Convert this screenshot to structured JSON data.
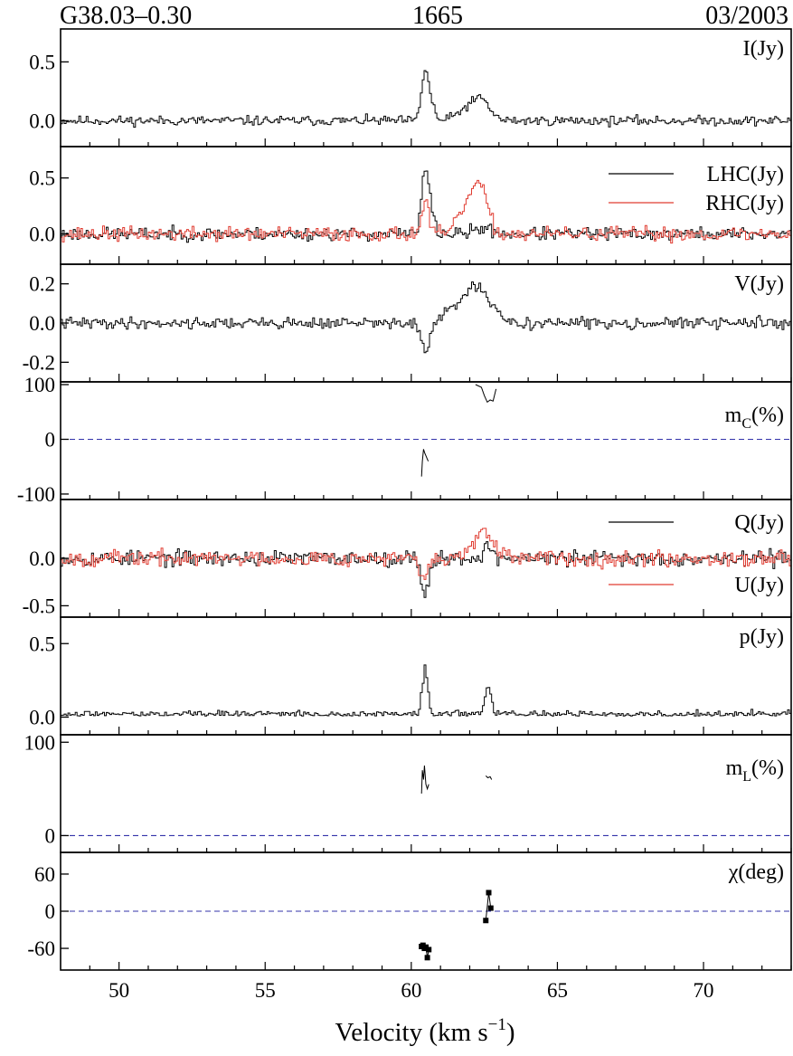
{
  "header": {
    "source": "G38.03–0.30",
    "line": "1665",
    "epoch": "03/2003"
  },
  "chart_data": {
    "type": "line",
    "style": "step",
    "stacked_panels": 8,
    "shared_x": {
      "label_main": "Velocity (km s",
      "label_sup": "−1",
      "label_close": ")",
      "range": [
        48.0,
        73.0
      ],
      "ticks": [
        50,
        55,
        60,
        65,
        70
      ],
      "tick_labels": [
        "50",
        "55",
        "60",
        "65",
        "70"
      ]
    },
    "colors": {
      "black": "#000000",
      "red": "#e03c31",
      "zero_line": "#3333aa"
    },
    "panels": [
      {
        "id": "I",
        "label": "I(Jy)",
        "ylim": [
          -0.22,
          0.78
        ],
        "ticks": [
          0.0,
          0.5
        ],
        "tick_labels": [
          "0.0",
          "0.5"
        ],
        "series": [
          {
            "name": "I(Jy)",
            "color": "#000000",
            "noise": 0.035,
            "seed": 11,
            "features": [
              [
                60.45,
                0.12,
                0.44
              ],
              [
                60.7,
                0.1,
                0.1
              ],
              [
                61.9,
                0.35,
                0.1
              ],
              [
                62.4,
                0.28,
                0.15
              ]
            ]
          }
        ]
      },
      {
        "id": "LR",
        "ylim": [
          -0.27,
          0.78
        ],
        "ticks": [
          0.0,
          0.5
        ],
        "tick_labels": [
          "0.0",
          "0.5"
        ],
        "legend": [
          {
            "label": "LHC(Jy)",
            "color": "#000000"
          },
          {
            "label": "RHC(Jy)",
            "color": "#e03c31"
          }
        ],
        "series": [
          {
            "name": "LHC(Jy)",
            "color": "#000000",
            "noise": 0.05,
            "seed": 23,
            "features": [
              [
                60.45,
                0.12,
                0.58
              ],
              [
                60.7,
                0.1,
                0.15
              ],
              [
                62.4,
                0.3,
                0.05
              ]
            ]
          },
          {
            "name": "RHC(Jy)",
            "color": "#e03c31",
            "noise": 0.055,
            "seed": 37,
            "features": [
              [
                60.45,
                0.12,
                0.3
              ],
              [
                61.9,
                0.3,
                0.25
              ],
              [
                62.35,
                0.25,
                0.35
              ]
            ]
          }
        ]
      },
      {
        "id": "V",
        "label": "V(Jy)",
        "ylim": [
          -0.3,
          0.3
        ],
        "ticks": [
          -0.2,
          0.0,
          0.2
        ],
        "tick_labels": [
          "-0.2",
          "0.0",
          "0.2"
        ],
        "series": [
          {
            "name": "V(Jy)",
            "color": "#000000",
            "noise": 0.025,
            "seed": 41,
            "features": [
              [
                60.45,
                0.15,
                -0.14
              ],
              [
                61.4,
                0.3,
                0.05
              ],
              [
                62.2,
                0.45,
                0.18
              ]
            ]
          }
        ]
      },
      {
        "id": "mc",
        "label_main": "m",
        "label_sub": "C",
        "label_close": "(%)",
        "ylim": [
          -110,
          105
        ],
        "ticks": [
          -100,
          0,
          100
        ],
        "tick_labels": [
          "-100",
          "0",
          "100"
        ],
        "zero_line": true,
        "series": [
          {
            "name": "mc-low",
            "color": "#000000",
            "x": [
              60.35,
              60.38,
              60.42,
              60.46,
              60.5,
              60.54,
              60.58
            ],
            "y": [
              -68,
              -40,
              -18,
              -25,
              -30,
              -35,
              -40
            ]
          },
          {
            "name": "mc-high",
            "color": "#000000",
            "x": [
              62.2,
              62.4,
              62.5,
              62.6,
              62.7,
              62.8,
              62.9
            ],
            "y": [
              100,
              95,
              80,
              68,
              72,
              70,
              92
            ]
          }
        ]
      },
      {
        "id": "QU",
        "ylim": [
          -0.62,
          0.62
        ],
        "ticks": [
          -0.5,
          0.0
        ],
        "tick_labels": [
          "-0.5",
          "0.0"
        ],
        "legend": [
          {
            "label": "Q(Jy)",
            "color": "#000000"
          },
          {
            "label": "U(Jy)",
            "color": "#e03c31"
          }
        ],
        "series": [
          {
            "name": "Q(Jy)",
            "color": "#000000",
            "noise": 0.07,
            "seed": 53,
            "features": [
              [
                60.45,
                0.12,
                -0.38
              ],
              [
                62.6,
                0.15,
                0.12
              ]
            ]
          },
          {
            "name": "U(Jy)",
            "color": "#e03c31",
            "noise": 0.07,
            "seed": 67,
            "features": [
              [
                60.4,
                0.15,
                -0.22
              ],
              [
                62.4,
                0.35,
                0.25
              ]
            ]
          }
        ]
      },
      {
        "id": "p",
        "label": "p(Jy)",
        "ylim": [
          -0.12,
          0.68
        ],
        "ticks": [
          0.0,
          0.5
        ],
        "tick_labels": [
          "0.0",
          "0.5"
        ],
        "series": [
          {
            "name": "p(Jy)",
            "color": "#000000",
            "noise": 0.03,
            "seed": 79,
            "positive": true,
            "features": [
              [
                60.45,
                0.1,
                0.32
              ],
              [
                62.6,
                0.12,
                0.18
              ]
            ]
          }
        ]
      },
      {
        "id": "mL",
        "label_main": "m",
        "label_sub": "L",
        "label_close": "(%)",
        "ylim": [
          -18,
          108
        ],
        "ticks": [
          0,
          100
        ],
        "tick_labels": [
          "0",
          "100"
        ],
        "zero_line": true,
        "series": [
          {
            "name": "mL-low",
            "color": "#000000",
            "x": [
              60.35,
              60.38,
              60.42,
              60.45,
              60.5,
              60.55,
              60.6
            ],
            "y": [
              45,
              70,
              60,
              75,
              55,
              50,
              55
            ]
          },
          {
            "name": "mL-high",
            "color": "#000000",
            "x": [
              62.55,
              62.62,
              62.7,
              62.75
            ],
            "y": [
              64,
              62,
              63,
              60
            ]
          }
        ]
      },
      {
        "id": "chi",
        "label": "χ(deg)",
        "ylim": [
          -95,
          95
        ],
        "ticks": [
          -60,
          0,
          60
        ],
        "tick_labels": [
          "-60",
          "0",
          "60"
        ],
        "zero_line": true,
        "points": [
          {
            "x": 60.35,
            "y": -57
          },
          {
            "x": 60.4,
            "y": -55
          },
          {
            "x": 60.45,
            "y": -60
          },
          {
            "x": 60.5,
            "y": -58
          },
          {
            "x": 60.55,
            "y": -75
          },
          {
            "x": 60.6,
            "y": -62
          },
          {
            "x": 62.55,
            "y": -15
          },
          {
            "x": 62.65,
            "y": 30
          },
          {
            "x": 62.72,
            "y": 5
          }
        ]
      }
    ]
  }
}
